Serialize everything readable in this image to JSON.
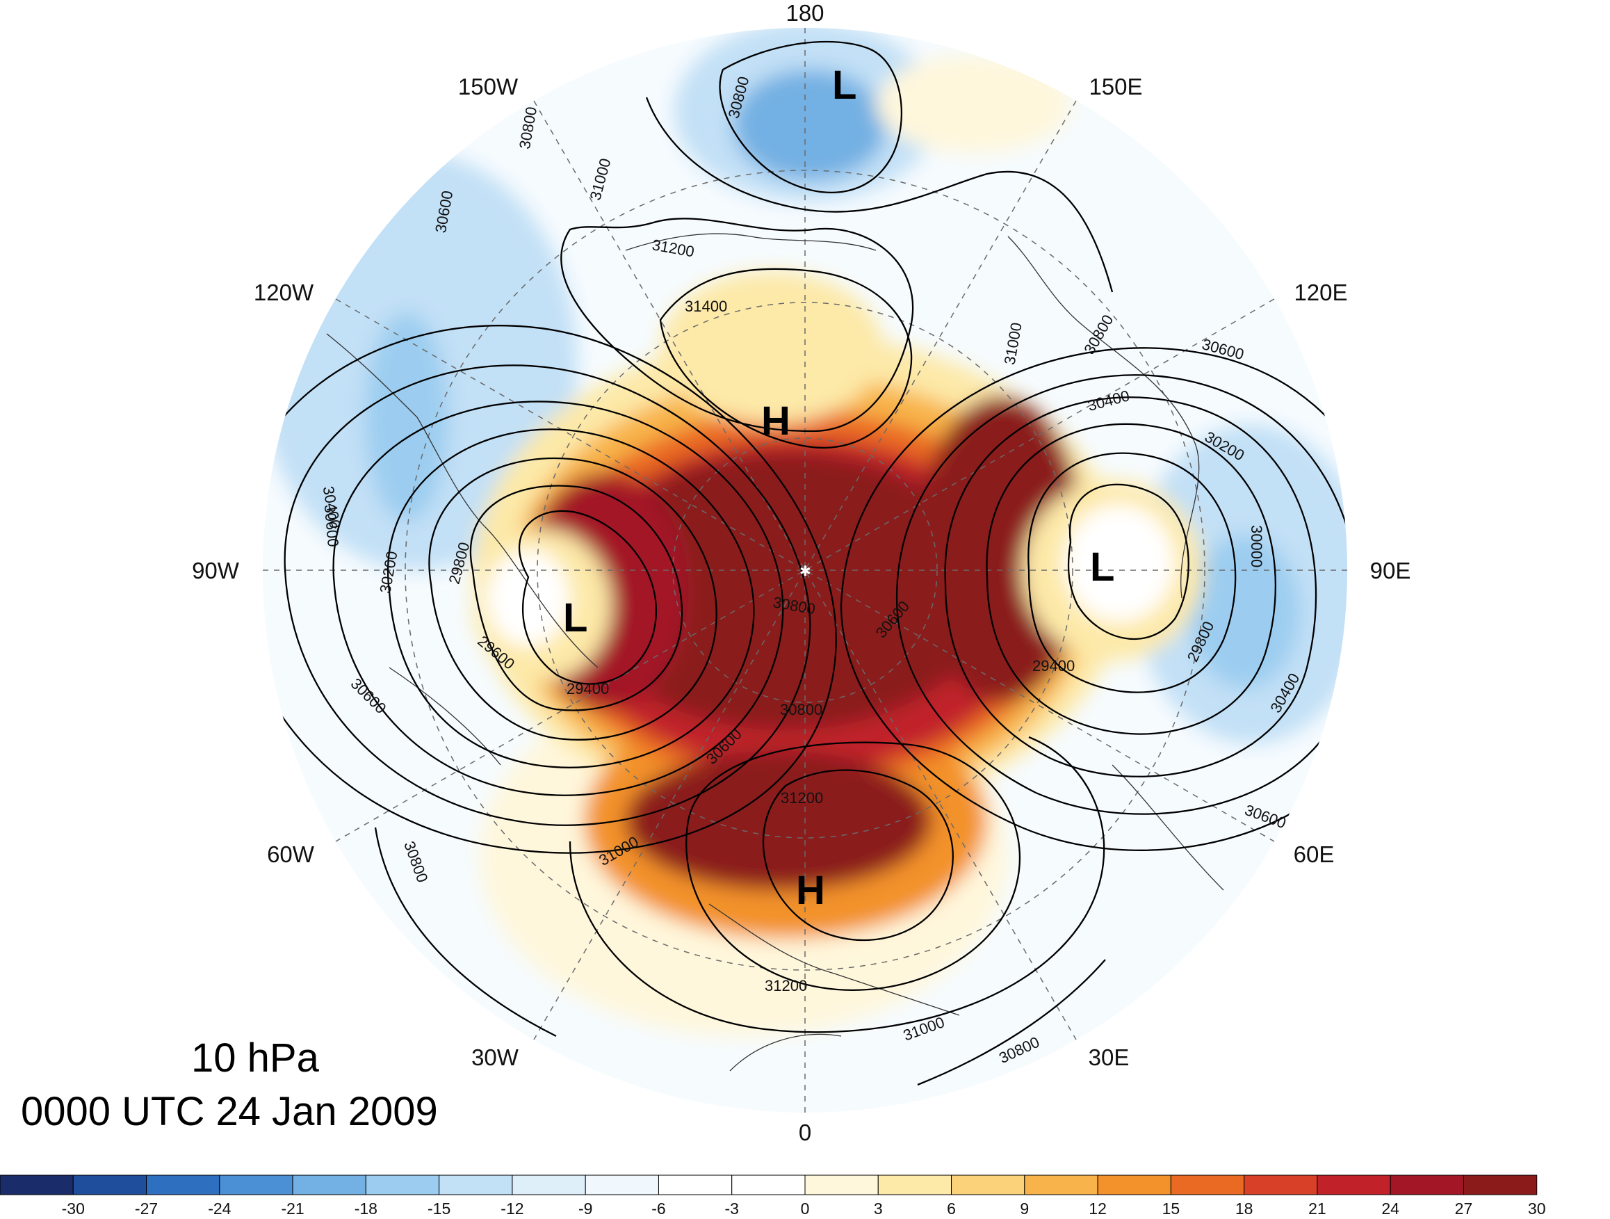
{
  "title": {
    "level": "10 hPa",
    "time": "0000 UTC 24 Jan 2009"
  },
  "longitude_labels": [
    {
      "id": "lon-180",
      "text": "180"
    },
    {
      "id": "lon-150e",
      "text": "150E"
    },
    {
      "id": "lon-120e",
      "text": "120E"
    },
    {
      "id": "lon-90e",
      "text": "90E"
    },
    {
      "id": "lon-60e",
      "text": "60E"
    },
    {
      "id": "lon-30e",
      "text": "30E"
    },
    {
      "id": "lon-0",
      "text": "0"
    },
    {
      "id": "lon-30w",
      "text": "30W"
    },
    {
      "id": "lon-60w",
      "text": "60W"
    },
    {
      "id": "lon-90w",
      "text": "90W"
    },
    {
      "id": "lon-120w",
      "text": "120W"
    },
    {
      "id": "lon-150w",
      "text": "150W"
    }
  ],
  "pressure_centers": [
    {
      "id": "low-pacific",
      "text": "L"
    },
    {
      "id": "high-arctic",
      "text": "H"
    },
    {
      "id": "low-canada",
      "text": "L"
    },
    {
      "id": "low-siberia",
      "text": "L"
    },
    {
      "id": "high-europe",
      "text": "H"
    }
  ],
  "contour_labels": [
    "30800",
    "31000",
    "30600",
    "30800",
    "31200",
    "31400",
    "31000",
    "30800",
    "30600",
    "30400",
    "30200",
    "30000",
    "29800",
    "30400",
    "30600",
    "29400",
    "30600",
    "30800",
    "30600",
    "29800",
    "30400",
    "30200",
    "29600",
    "29400",
    "30600",
    "30800",
    "30600",
    "31000",
    "31200",
    "30800",
    "31200",
    "31000",
    "30800"
  ],
  "colorbar": {
    "ticks": [
      "-30",
      "-27",
      "-24",
      "-21",
      "-18",
      "-15",
      "-12",
      "-9",
      "-6",
      "-3",
      "0",
      "3",
      "6",
      "9",
      "12",
      "15",
      "18",
      "21",
      "24",
      "27",
      "30"
    ],
    "colors": [
      "#1b2c6b",
      "#1f4e9c",
      "#2f6fbf",
      "#4b8fd4",
      "#73b0e3",
      "#9ccdf0",
      "#c2e0f6",
      "#deeffa",
      "#f1f8fd",
      "#ffffff",
      "#ffffff",
      "#fff7dc",
      "#fde9a8",
      "#fbd27a",
      "#f8b34a",
      "#f3922a",
      "#ea6a23",
      "#d84127",
      "#c1222a",
      "#a31626",
      "#8b1a1a"
    ]
  },
  "field": {
    "type": "polar-stereographic",
    "hemisphere": "north",
    "shaded_variable": "temperature anomaly",
    "contour_variable": "geopotential height"
  }
}
